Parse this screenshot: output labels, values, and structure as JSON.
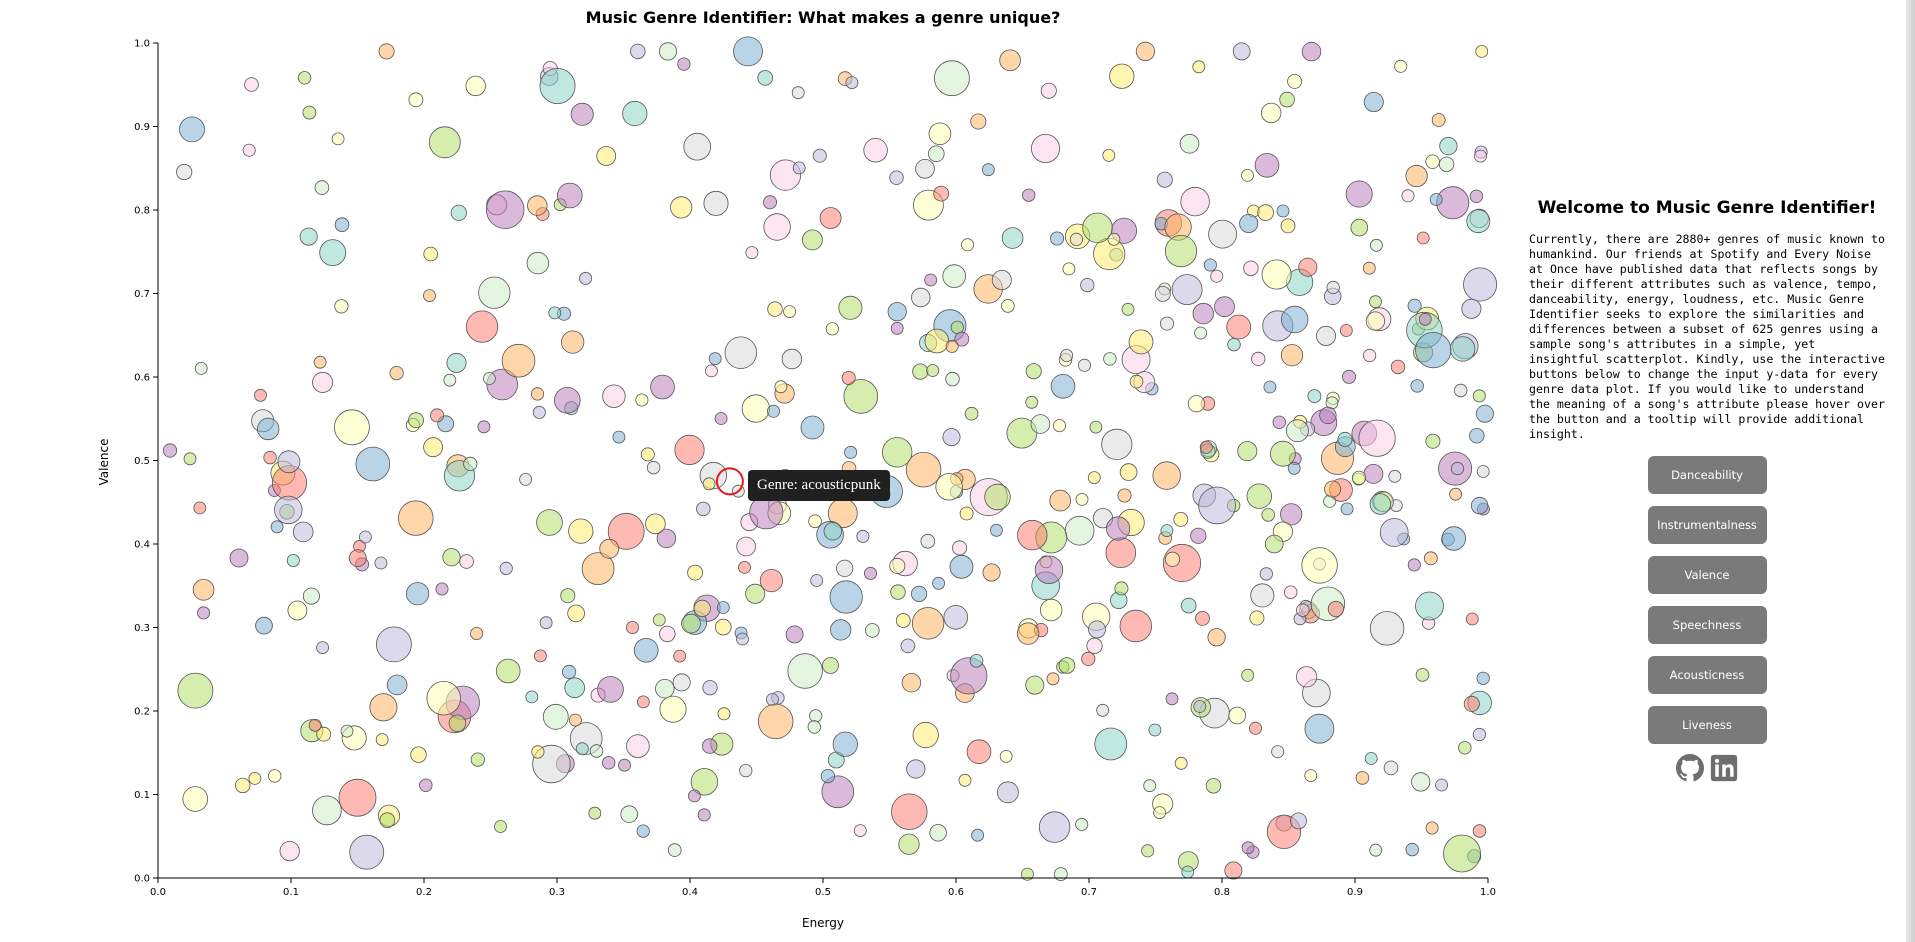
{
  "chart_data": {
    "type": "scatter",
    "title": "Music Genre Identifier: What makes a genre unique?",
    "xlabel": "Energy",
    "ylabel": "Valence",
    "xlim": [
      0.0,
      1.0
    ],
    "ylim": [
      0.0,
      1.0
    ],
    "x_ticks": [
      "0.0",
      "0.1",
      "0.2",
      "0.3",
      "0.4",
      "0.5",
      "0.6",
      "0.7",
      "0.8",
      "0.9",
      "1.0"
    ],
    "y_ticks": [
      "0.0",
      "0.1",
      "0.2",
      "0.3",
      "0.4",
      "0.5",
      "0.6",
      "0.7",
      "0.8",
      "0.9",
      "1.0"
    ],
    "grid": false,
    "point_count": 625,
    "palette": [
      "#8dd3c7",
      "#ffffb3",
      "#bebada",
      "#fb8072",
      "#80b1d3",
      "#fdb462",
      "#b3de69",
      "#fccde5",
      "#d9d9d9",
      "#bc80bd",
      "#ccebc5",
      "#ffed6f"
    ],
    "highlighted_point": {
      "x": 0.43,
      "y": 0.475,
      "genre": "acousticpunk",
      "stroke": "#e41a1c"
    }
  },
  "tooltip": {
    "text": "Genre: acousticpunk"
  },
  "sidebar": {
    "title": "Welcome to Music Genre Identifier!",
    "description": "Currently, there are 2880+ genres of music known to humankind. Our friends at Spotify and Every Noise at Once have published data that reflects songs by their different attributes such as valence, tempo, danceability, energy, loudness, etc. Music Genre Identifier seeks to explore the similarities and differences between a subset of 625 genres using a sample song's attributes in a simple, yet insightful scatterplot. Kindly, use the interactive buttons below to change the input y-data for every genre data plot. If you would like to understand the meaning of a song's attribute please hover over the button and a tooltip will provide additional insight.",
    "buttons": [
      "Danceability",
      "Instrumentalness",
      "Valence",
      "Speechness",
      "Acousticness",
      "Liveness"
    ],
    "icons": [
      "github-icon",
      "linkedin-icon"
    ]
  }
}
